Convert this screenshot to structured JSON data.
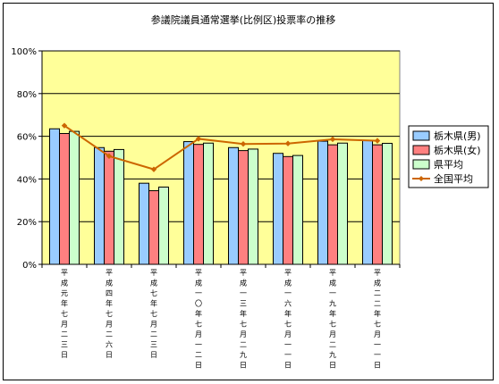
{
  "chart_data": {
    "type": "bar",
    "title": "参議院議員通常選挙(比例区)投票率の推移",
    "categories": [
      "平成元年七月二三日",
      "平成四年七月二六日",
      "平成七年七月二三日",
      "平成一〇年七月一二日",
      "平成一三年七月二九日",
      "平成一六年七月一一日",
      "平成一九年七月二九日",
      "平成二二年七月一一日"
    ],
    "ylim": [
      0,
      100
    ],
    "y_ticks": [
      "0%",
      "20%",
      "40%",
      "60%",
      "80%",
      "100%"
    ],
    "grid": true,
    "legend_position": "right",
    "series": [
      {
        "name": "栃木県(男)",
        "type": "bar",
        "color": "#99CCFF",
        "values": [
          63.5,
          54.7,
          38.0,
          57.5,
          54.7,
          52.0,
          57.7,
          58.0
        ]
      },
      {
        "name": "栃木県(女)",
        "type": "bar",
        "color": "#FF8080",
        "values": [
          61.3,
          53.0,
          34.5,
          56.2,
          53.3,
          50.5,
          56.0,
          56.0
        ]
      },
      {
        "name": "県平均",
        "type": "bar",
        "color": "#CCFFCC",
        "values": [
          62.3,
          53.8,
          36.2,
          56.8,
          54.0,
          51.0,
          56.8,
          56.7
        ]
      },
      {
        "name": "全国平均",
        "type": "line",
        "color": "#CC6600",
        "values": [
          65.0,
          50.7,
          44.5,
          58.8,
          56.4,
          56.6,
          58.6,
          57.9
        ]
      }
    ]
  }
}
